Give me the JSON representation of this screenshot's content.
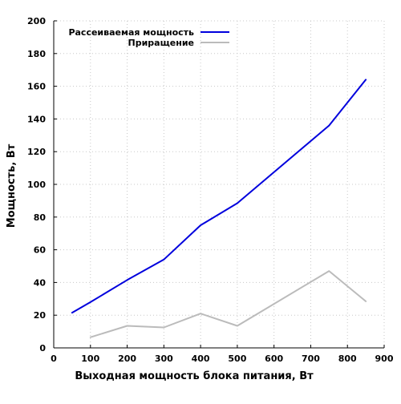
{
  "chart_data": {
    "type": "line",
    "title": "",
    "xlabel": "Выходная мощность блока питания, Вт",
    "ylabel": "Мощность, Вт",
    "xlim": [
      0,
      900
    ],
    "ylim": [
      0,
      200
    ],
    "xticks": [
      0,
      100,
      200,
      300,
      400,
      500,
      600,
      700,
      800,
      900
    ],
    "yticks": [
      0,
      20,
      40,
      60,
      80,
      100,
      120,
      140,
      160,
      180,
      200
    ],
    "grid": true,
    "legend_position": "top-left",
    "series": [
      {
        "name": "Рассеиваемая мощность",
        "color": "#0000dd",
        "x": [
          50,
          100,
          200,
          300,
          400,
          500,
          750,
          850
        ],
        "y": [
          21.5,
          28,
          41.5,
          54,
          75,
          88.5,
          136,
          164
        ]
      },
      {
        "name": "Приращение",
        "color": "#bbbbbb",
        "x": [
          100,
          200,
          300,
          400,
          500,
          750,
          850
        ],
        "y": [
          6.5,
          13.5,
          12.5,
          21,
          13.5,
          47,
          28.5
        ]
      }
    ]
  }
}
